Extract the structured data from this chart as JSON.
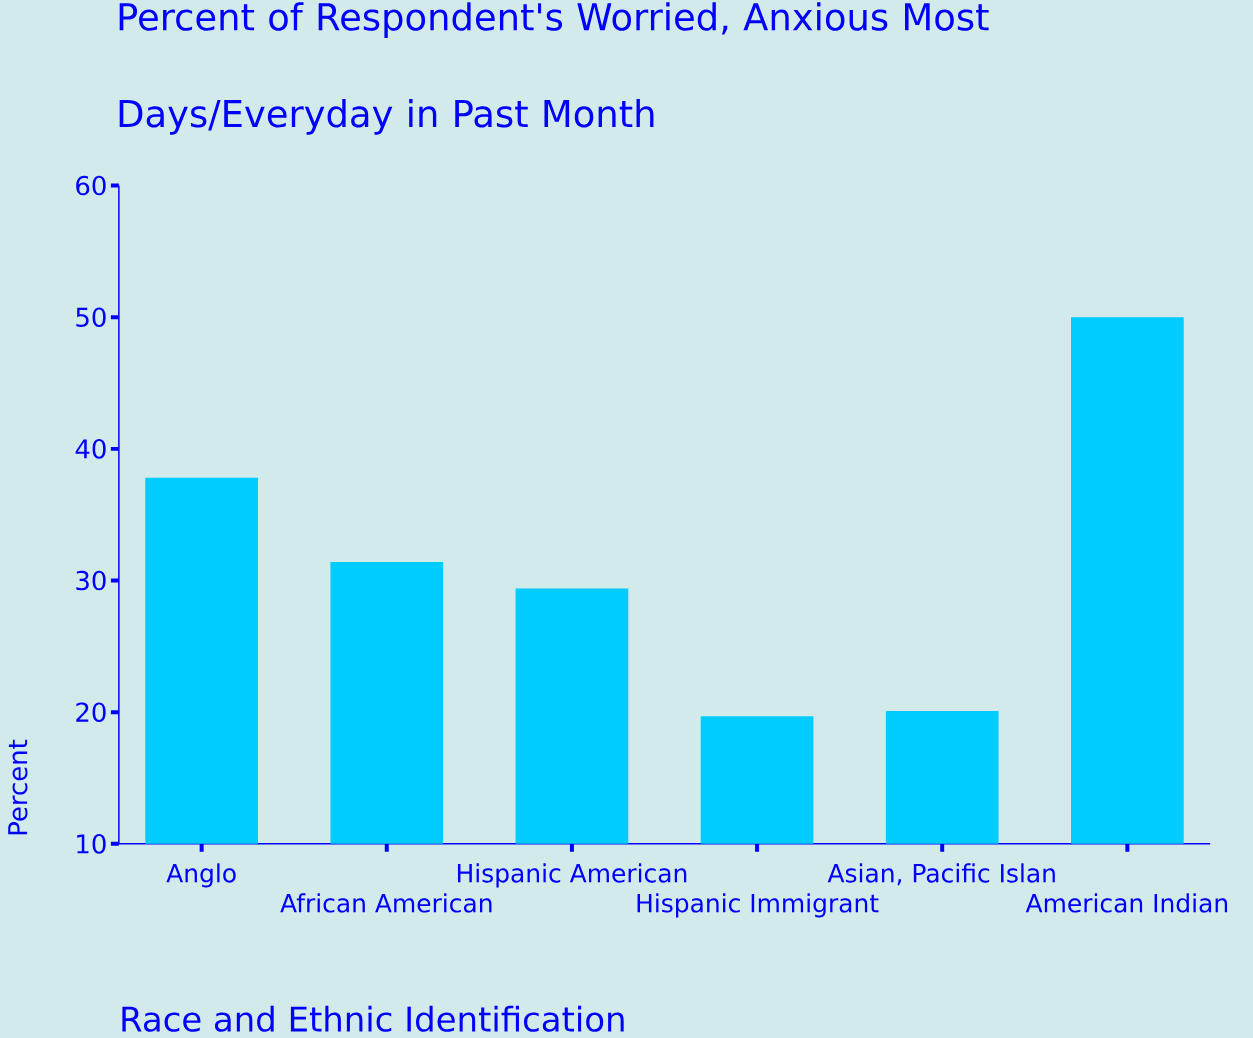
{
  "chart_data": {
    "type": "bar",
    "title": "Percent of Respondent's Worried, Anxious Most Days/Everyday in Past Month",
    "xlabel": "Race and Ethnic Identification",
    "ylabel": "Percent",
    "categories": [
      "Anglo",
      "African American",
      "Hispanic American",
      "Hispanic Immigrant",
      "Asian, Pacific Islan",
      "American Indian"
    ],
    "values": [
      37.8,
      31.4,
      29.4,
      19.7,
      20.1,
      50
    ],
    "color": "#00ccff",
    "ylim": [
      10,
      60
    ],
    "yticks": [
      10,
      20,
      30,
      40,
      50,
      60
    ]
  }
}
